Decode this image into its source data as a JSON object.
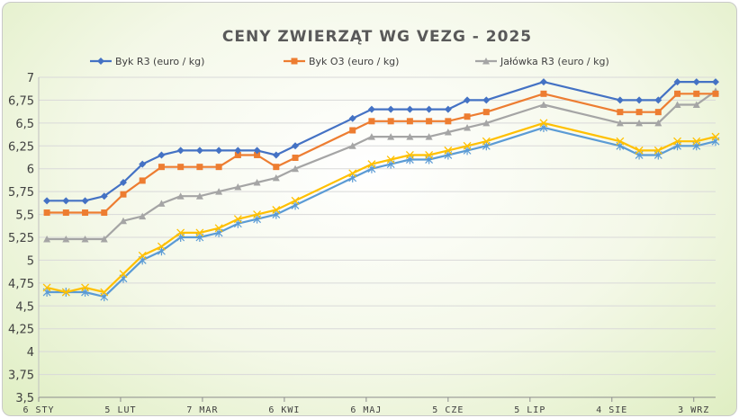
{
  "chart_data": {
    "type": "line",
    "title": "CENY ZWIERZĄT WG VEZG - 2025",
    "xlabel": "",
    "ylabel": "",
    "ylim": [
      3.5,
      7
    ],
    "y_ticks": [
      "3,5",
      "3,75",
      "4",
      "4,25",
      "4,5",
      "4,75",
      "5",
      "5,25",
      "5,5",
      "5,75",
      "6",
      "6,25",
      "6,5",
      "6,75",
      "7"
    ],
    "x_tick_labels": [
      "6 STY",
      "5 LUT",
      "7 MAR",
      "6 KWI",
      "6 MAJ",
      "5 CZE",
      "5 LIP",
      "4 SIE",
      "3 WRZ"
    ],
    "x_tick_dates": [
      "2025-01-06",
      "2025-02-05",
      "2025-03-07",
      "2025-04-06",
      "2025-05-06",
      "2025-06-05",
      "2025-07-05",
      "2025-08-04",
      "2025-09-03"
    ],
    "x_range": [
      "2025-01-06",
      "2025-09-11"
    ],
    "legend_position": "top",
    "grid": true,
    "series": [
      {
        "name": "Byk R3 (euro / kg)",
        "color": "#4472c4",
        "marker": "diamond",
        "x": [
          "2025-01-09",
          "2025-01-16",
          "2025-01-23",
          "2025-01-30",
          "2025-02-06",
          "2025-02-13",
          "2025-02-20",
          "2025-02-27",
          "2025-03-06",
          "2025-03-13",
          "2025-03-20",
          "2025-03-27",
          "2025-04-03",
          "2025-04-10",
          "2025-05-01",
          "2025-05-08",
          "2025-05-15",
          "2025-05-22",
          "2025-05-29",
          "2025-06-05",
          "2025-06-12",
          "2025-06-19",
          "2025-07-10",
          "2025-08-07",
          "2025-08-14",
          "2025-08-21",
          "2025-08-28",
          "2025-09-04",
          "2025-09-11"
        ],
        "values": [
          5.65,
          5.65,
          5.65,
          5.7,
          5.85,
          6.05,
          6.15,
          6.2,
          6.2,
          6.2,
          6.2,
          6.2,
          6.15,
          6.25,
          6.55,
          6.65,
          6.65,
          6.65,
          6.65,
          6.65,
          6.75,
          6.75,
          6.95,
          6.75,
          6.75,
          6.75,
          6.95,
          6.95,
          6.95
        ]
      },
      {
        "name": "Byk O3 (euro / kg)",
        "color": "#ed7d31",
        "marker": "square",
        "x": [
          "2025-01-09",
          "2025-01-16",
          "2025-01-23",
          "2025-01-30",
          "2025-02-06",
          "2025-02-13",
          "2025-02-20",
          "2025-02-27",
          "2025-03-06",
          "2025-03-13",
          "2025-03-20",
          "2025-03-27",
          "2025-04-03",
          "2025-04-10",
          "2025-05-01",
          "2025-05-08",
          "2025-05-15",
          "2025-05-22",
          "2025-05-29",
          "2025-06-05",
          "2025-06-12",
          "2025-06-19",
          "2025-07-10",
          "2025-08-07",
          "2025-08-14",
          "2025-08-21",
          "2025-08-28",
          "2025-09-04",
          "2025-09-11"
        ],
        "values": [
          5.52,
          5.52,
          5.52,
          5.52,
          5.72,
          5.87,
          6.02,
          6.02,
          6.02,
          6.02,
          6.15,
          6.15,
          6.02,
          6.12,
          6.42,
          6.52,
          6.52,
          6.52,
          6.52,
          6.52,
          6.57,
          6.62,
          6.82,
          6.62,
          6.62,
          6.62,
          6.82,
          6.82,
          6.82
        ]
      },
      {
        "name": "Jałówka R3 (euro / kg)",
        "color": "#a5a5a5",
        "marker": "triangle",
        "x": [
          "2025-01-09",
          "2025-01-16",
          "2025-01-23",
          "2025-01-30",
          "2025-02-06",
          "2025-02-13",
          "2025-02-20",
          "2025-02-27",
          "2025-03-06",
          "2025-03-13",
          "2025-03-20",
          "2025-03-27",
          "2025-04-03",
          "2025-04-10",
          "2025-05-01",
          "2025-05-08",
          "2025-05-15",
          "2025-05-22",
          "2025-05-29",
          "2025-06-05",
          "2025-06-12",
          "2025-06-19",
          "2025-07-10",
          "2025-08-07",
          "2025-08-14",
          "2025-08-21",
          "2025-08-28",
          "2025-09-04",
          "2025-09-11"
        ],
        "values": [
          5.23,
          5.23,
          5.23,
          5.23,
          5.43,
          5.48,
          5.62,
          5.7,
          5.7,
          5.75,
          5.8,
          5.85,
          5.9,
          6.0,
          6.25,
          6.35,
          6.35,
          6.35,
          6.35,
          6.4,
          6.45,
          6.5,
          6.7,
          6.5,
          6.5,
          6.5,
          6.7,
          6.7,
          6.85
        ]
      },
      {
        "color": "#ffc000",
        "marker": "x",
        "x": [
          "2025-01-09",
          "2025-01-16",
          "2025-01-23",
          "2025-01-30",
          "2025-02-06",
          "2025-02-13",
          "2025-02-20",
          "2025-02-27",
          "2025-03-06",
          "2025-03-13",
          "2025-03-20",
          "2025-03-27",
          "2025-04-03",
          "2025-04-10",
          "2025-05-01",
          "2025-05-08",
          "2025-05-15",
          "2025-05-22",
          "2025-05-29",
          "2025-06-05",
          "2025-06-12",
          "2025-06-19",
          "2025-07-10",
          "2025-08-07",
          "2025-08-14",
          "2025-08-21",
          "2025-08-28",
          "2025-09-04",
          "2025-09-11"
        ],
        "values": [
          4.7,
          4.65,
          4.7,
          4.65,
          4.85,
          5.05,
          5.15,
          5.3,
          5.3,
          5.35,
          5.45,
          5.5,
          5.55,
          5.65,
          5.95,
          6.05,
          6.1,
          6.15,
          6.15,
          6.2,
          6.25,
          6.3,
          6.5,
          6.3,
          6.2,
          6.2,
          6.3,
          6.3,
          6.35
        ]
      },
      {
        "color": "#5b9bd5",
        "marker": "star",
        "x": [
          "2025-01-09",
          "2025-01-16",
          "2025-01-23",
          "2025-01-30",
          "2025-02-06",
          "2025-02-13",
          "2025-02-20",
          "2025-02-27",
          "2025-03-06",
          "2025-03-13",
          "2025-03-20",
          "2025-03-27",
          "2025-04-03",
          "2025-04-10",
          "2025-05-01",
          "2025-05-08",
          "2025-05-15",
          "2025-05-22",
          "2025-05-29",
          "2025-06-05",
          "2025-06-12",
          "2025-06-19",
          "2025-07-10",
          "2025-08-07",
          "2025-08-14",
          "2025-08-21",
          "2025-08-28",
          "2025-09-04",
          "2025-09-11"
        ],
        "values": [
          4.65,
          4.65,
          4.65,
          4.6,
          4.8,
          5.0,
          5.1,
          5.25,
          5.25,
          5.3,
          5.4,
          5.45,
          5.5,
          5.6,
          5.9,
          6.0,
          6.05,
          6.1,
          6.1,
          6.15,
          6.2,
          6.25,
          6.45,
          6.25,
          6.15,
          6.15,
          6.25,
          6.25,
          6.3
        ]
      }
    ]
  }
}
